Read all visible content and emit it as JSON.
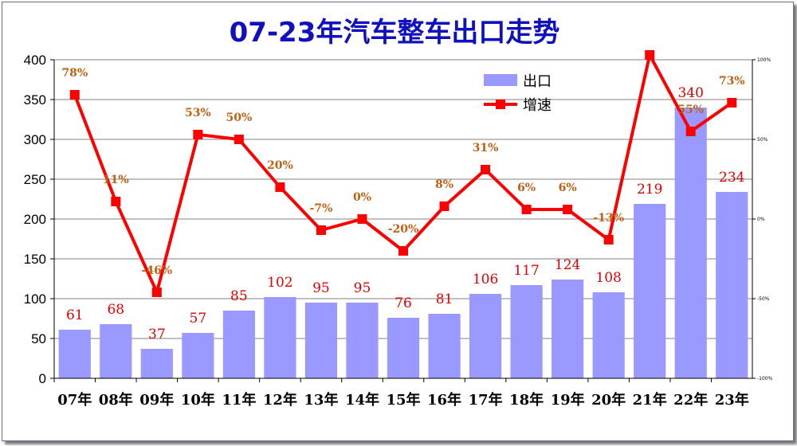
{
  "chart_data": {
    "type": "bar",
    "title": "07-23年汽车整车出口走势",
    "categories": [
      "07年",
      "08年",
      "09年",
      "10年",
      "11年",
      "12年",
      "13年",
      "14年",
      "15年",
      "16年",
      "17年",
      "18年",
      "19年",
      "20年",
      "21年",
      "22年",
      "23年"
    ],
    "series": [
      {
        "name": "出口",
        "type": "bar",
        "axis": "left",
        "color": "#9999ff",
        "values": [
          61,
          68,
          37,
          57,
          85,
          102,
          95,
          95,
          76,
          81,
          106,
          117,
          124,
          108,
          219,
          340,
          234
        ],
        "labels": [
          "61",
          "68",
          "37",
          "57",
          "85",
          "102",
          "95",
          "95",
          "76",
          "81",
          "106",
          "117",
          "124",
          "108",
          "219",
          "340",
          "234"
        ]
      },
      {
        "name": "增速",
        "type": "line",
        "axis": "right",
        "color": "#ff0000",
        "values": [
          78,
          11,
          -46,
          53,
          50,
          20,
          -7,
          0,
          -20,
          8,
          31,
          6,
          6,
          -13,
          103,
          55,
          73
        ],
        "labels": [
          "78%",
          "11%",
          "-46%",
          "53%",
          "50%",
          "20%",
          "-7%",
          "0%",
          "-20%",
          "8%",
          "31%",
          "6%",
          "6%",
          "-13%",
          "",
          "55%",
          "73%"
        ]
      }
    ],
    "ylim": [
      0,
      400
    ],
    "yticks": [
      "0",
      "50",
      "100",
      "150",
      "200",
      "250",
      "300",
      "350",
      "400"
    ],
    "y2lim": [
      -100,
      100
    ],
    "y2ticks": [
      "-100%",
      "-50%",
      "0%",
      "50%",
      "100%"
    ],
    "grid": true,
    "legend": "top-right"
  }
}
